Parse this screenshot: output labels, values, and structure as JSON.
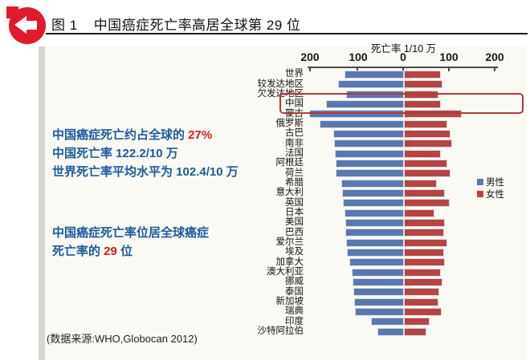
{
  "header": {
    "figure_label": "图 1",
    "title": "中国癌症死亡率高居全球第 29 位"
  },
  "annotations": {
    "line1_prefix": "中国癌症死亡约占全球的 ",
    "line1_highlight": "27%",
    "line2": "中国死亡率 122.2/10 万",
    "line3": "世界死亡率平均水平为 102.4/10 万",
    "line4": "中国癌症死亡率位居全球癌症",
    "line5_prefix": "死亡率的 ",
    "line5_highlight": "29",
    "line5_suffix": " 位"
  },
  "source_note": "(数据来源:WHO,Globocan 2012)",
  "chart_data": {
    "type": "bar",
    "orientation": "horizontal-diverging",
    "axis_title": "死亡率 1/10 万",
    "tick_labels": [
      "200",
      "100",
      "0",
      "100",
      "200"
    ],
    "axis_max_each_side": 200,
    "unit": "per 100,000",
    "legend_position": "right",
    "highlighted_category": "中国",
    "colors": {
      "male": "#5b78ae",
      "female": "#b34543",
      "highlight_box": "#b03a3a",
      "annotation_blue": "#1c5a9e",
      "annotation_red": "#e3170d",
      "logo_red": "#e11b2d"
    },
    "categories": [
      "世界",
      "较发达地区",
      "欠发达地区",
      "中国",
      "蒙古",
      "俄罗斯",
      "古巴",
      "南非",
      "法国",
      "阿根廷",
      "荷兰",
      "希腊",
      "意大利",
      "英国",
      "日本",
      "美国",
      "巴西",
      "爱尔兰",
      "埃及",
      "加拿大",
      "澳大利亚",
      "挪威",
      "泰国",
      "新加坡",
      "瑞典",
      "印度",
      "沙特阿拉伯"
    ],
    "series": [
      {
        "name": "男性",
        "values": [
          128,
          142,
          123,
          167,
          204,
          181,
          151,
          149,
          148,
          147,
          146,
          135,
          132,
          130,
          127,
          126,
          125,
          124,
          122,
          117,
          112,
          110,
          108,
          106,
          104,
          70,
          56
        ]
      },
      {
        "name": "女性",
        "values": [
          81,
          84,
          75,
          80,
          126,
          94,
          102,
          104,
          80,
          94,
          102,
          71,
          89,
          100,
          67,
          90,
          87,
          94,
          88,
          90,
          80,
          84,
          77,
          75,
          83,
          57,
          49
        ]
      }
    ]
  }
}
